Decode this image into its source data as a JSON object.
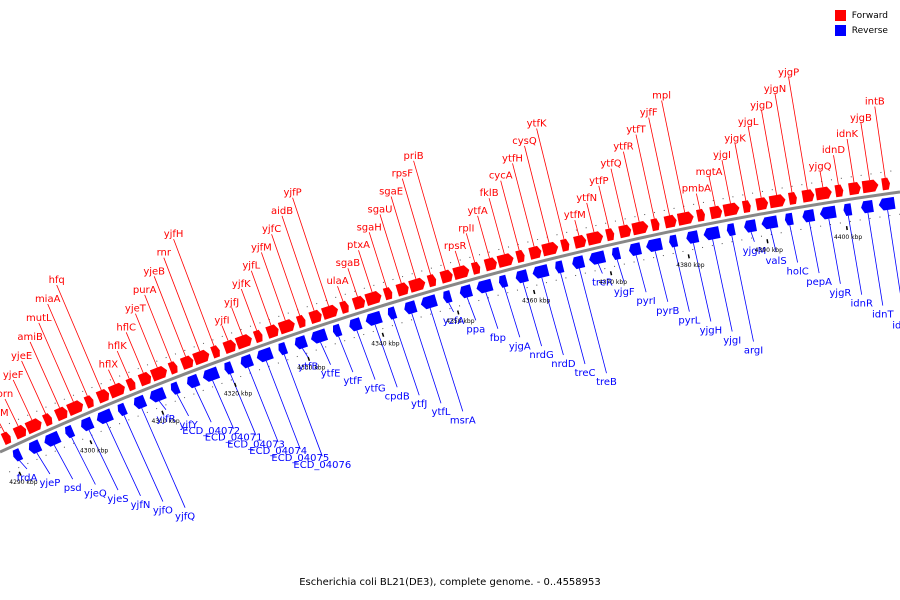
{
  "colors": {
    "forward": "#ff0000",
    "reverse": "#0000ff",
    "backbone": "#888888",
    "tick": "#000000"
  },
  "legend": {
    "forward": "Forward",
    "reverse": "Reverse"
  },
  "caption": "Escherichia coli BL21(DE3), complete genome. - 0..4558953",
  "tick_labels": [
    "4290 kbp",
    "4300 kbp",
    "4310 kbp",
    "4320 kbp",
    "4330 kbp",
    "4340 kbp",
    "4350 kbp",
    "4360 kbp",
    "4370 kbp",
    "4380 kbp",
    "4390 kbp",
    "4400 kbp"
  ],
  "forward_genes": [
    "yjeM",
    "orn",
    "yjeF",
    "yjeE",
    "amiB",
    "mutL",
    "miaA",
    "hfq",
    "hflX",
    "hflK",
    "hflC",
    "yjeT",
    "purA",
    "yjeB",
    "rnr",
    "yjfH",
    "yjfI",
    "yjfJ",
    "yjfK",
    "yjfL",
    "yjfM",
    "yjfC",
    "aidB",
    "yjfP",
    "ulaA",
    "sgaB",
    "ptxA",
    "sgaH",
    "sgaU",
    "sgaE",
    "rpsF",
    "priB",
    "rpsR",
    "rplI",
    "ytfA",
    "fklB",
    "cycA",
    "ytfH",
    "cysQ",
    "ytfK",
    "ytfM",
    "ytfN",
    "ytfP",
    "ytfQ",
    "ytfR",
    "ytfT",
    "yjfF",
    "mpl",
    "pmbA",
    "mgtA",
    "yjgI",
    "yjgK",
    "yjgL",
    "yjgD",
    "yjgN",
    "yjgP",
    "yjgQ",
    "idnD",
    "idnK",
    "yjgB",
    "intB"
  ],
  "reverse_genes": [
    "frdA",
    "yjeP",
    "psd",
    "yjeQ",
    "yjeS",
    "yjfN",
    "yjfO",
    "yjfQ",
    "yjfR",
    "yjfY",
    "ECD_04072",
    "ECD_04071",
    "ECD_04073",
    "ECD_04074",
    "ECD_04075",
    "ECD_04076",
    "ytfB",
    "ytfE",
    "ytfF",
    "ytfG",
    "cpdB",
    "ytfJ",
    "ytfL",
    "msrA",
    "yzfA",
    "ppa",
    "fbp",
    "yjgA",
    "nrdG",
    "nrdD",
    "treC",
    "treB",
    "treR",
    "yjgF",
    "pyrI",
    "pyrB",
    "pyrL",
    "yjgH",
    "yjgI",
    "argI",
    "yjgM",
    "valS",
    "holC",
    "pepA",
    "yjgR",
    "idnR",
    "idnT",
    "idnO"
  ]
}
